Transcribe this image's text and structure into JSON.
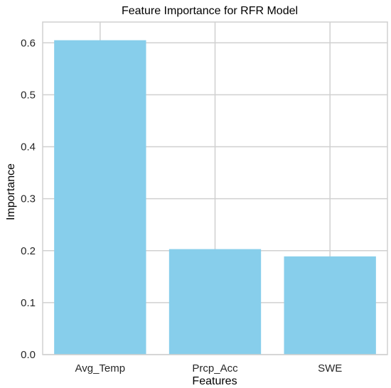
{
  "chart_data": {
    "type": "bar",
    "title": "Feature Importance for RFR Model",
    "xlabel": "Features",
    "ylabel": "Importance",
    "categories": [
      "Avg_Temp",
      "Prcp_Acc",
      "SWE"
    ],
    "values": [
      0.605,
      0.203,
      0.189
    ],
    "ylim": [
      0,
      0.64
    ],
    "yticks": [
      0.0,
      0.1,
      0.2,
      0.3,
      0.4,
      0.5,
      0.6
    ],
    "ytick_labels": [
      "0.0",
      "0.1",
      "0.2",
      "0.3",
      "0.4",
      "0.5",
      "0.6"
    ],
    "grid": true,
    "colors": {
      "bar": "#87CEEB",
      "grid": "#d0d0d0",
      "frame": "#d0d0d0"
    }
  }
}
